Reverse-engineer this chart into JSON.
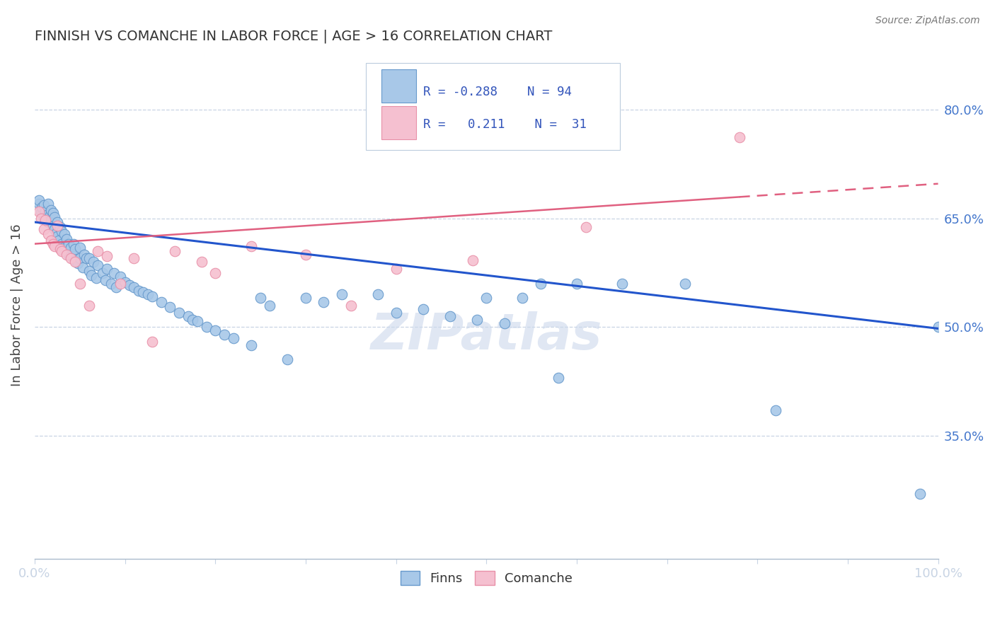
{
  "title": "FINNISH VS COMANCHE IN LABOR FORCE | AGE > 16 CORRELATION CHART",
  "source_text": "Source: ZipAtlas.com",
  "ylabel": "In Labor Force | Age > 16",
  "xlim": [
    0.0,
    1.0
  ],
  "ylim": [
    0.18,
    0.88
  ],
  "yticks": [
    0.35,
    0.5,
    0.65,
    0.8
  ],
  "ytick_labels": [
    "35.0%",
    "50.0%",
    "65.0%",
    "80.0%"
  ],
  "xticks": [
    0.0,
    0.1,
    0.2,
    0.3,
    0.4,
    0.5,
    0.6,
    0.7,
    0.8,
    0.9,
    1.0
  ],
  "finns_color": "#a8c8e8",
  "finns_edge_color": "#6699cc",
  "comanche_color": "#f5c0d0",
  "comanche_edge_color": "#e890a8",
  "finns_line_color": "#2255cc",
  "comanche_line_color": "#e06080",
  "grid_color": "#c8d4e4",
  "background_color": "#ffffff",
  "legend_R_finns": "-0.288",
  "legend_N_finns": "94",
  "legend_R_comanche": "0.211",
  "legend_N_comanche": "31",
  "legend_text_color": "#3355bb",
  "label_color": "#4477cc",
  "watermark_text": "ZIPatlas",
  "finns_trend_x": [
    0.0,
    1.0
  ],
  "finns_trend_y": [
    0.645,
    0.498
  ],
  "comanche_trend_x": [
    0.0,
    1.0
  ],
  "comanche_trend_y": [
    0.615,
    0.698
  ]
}
